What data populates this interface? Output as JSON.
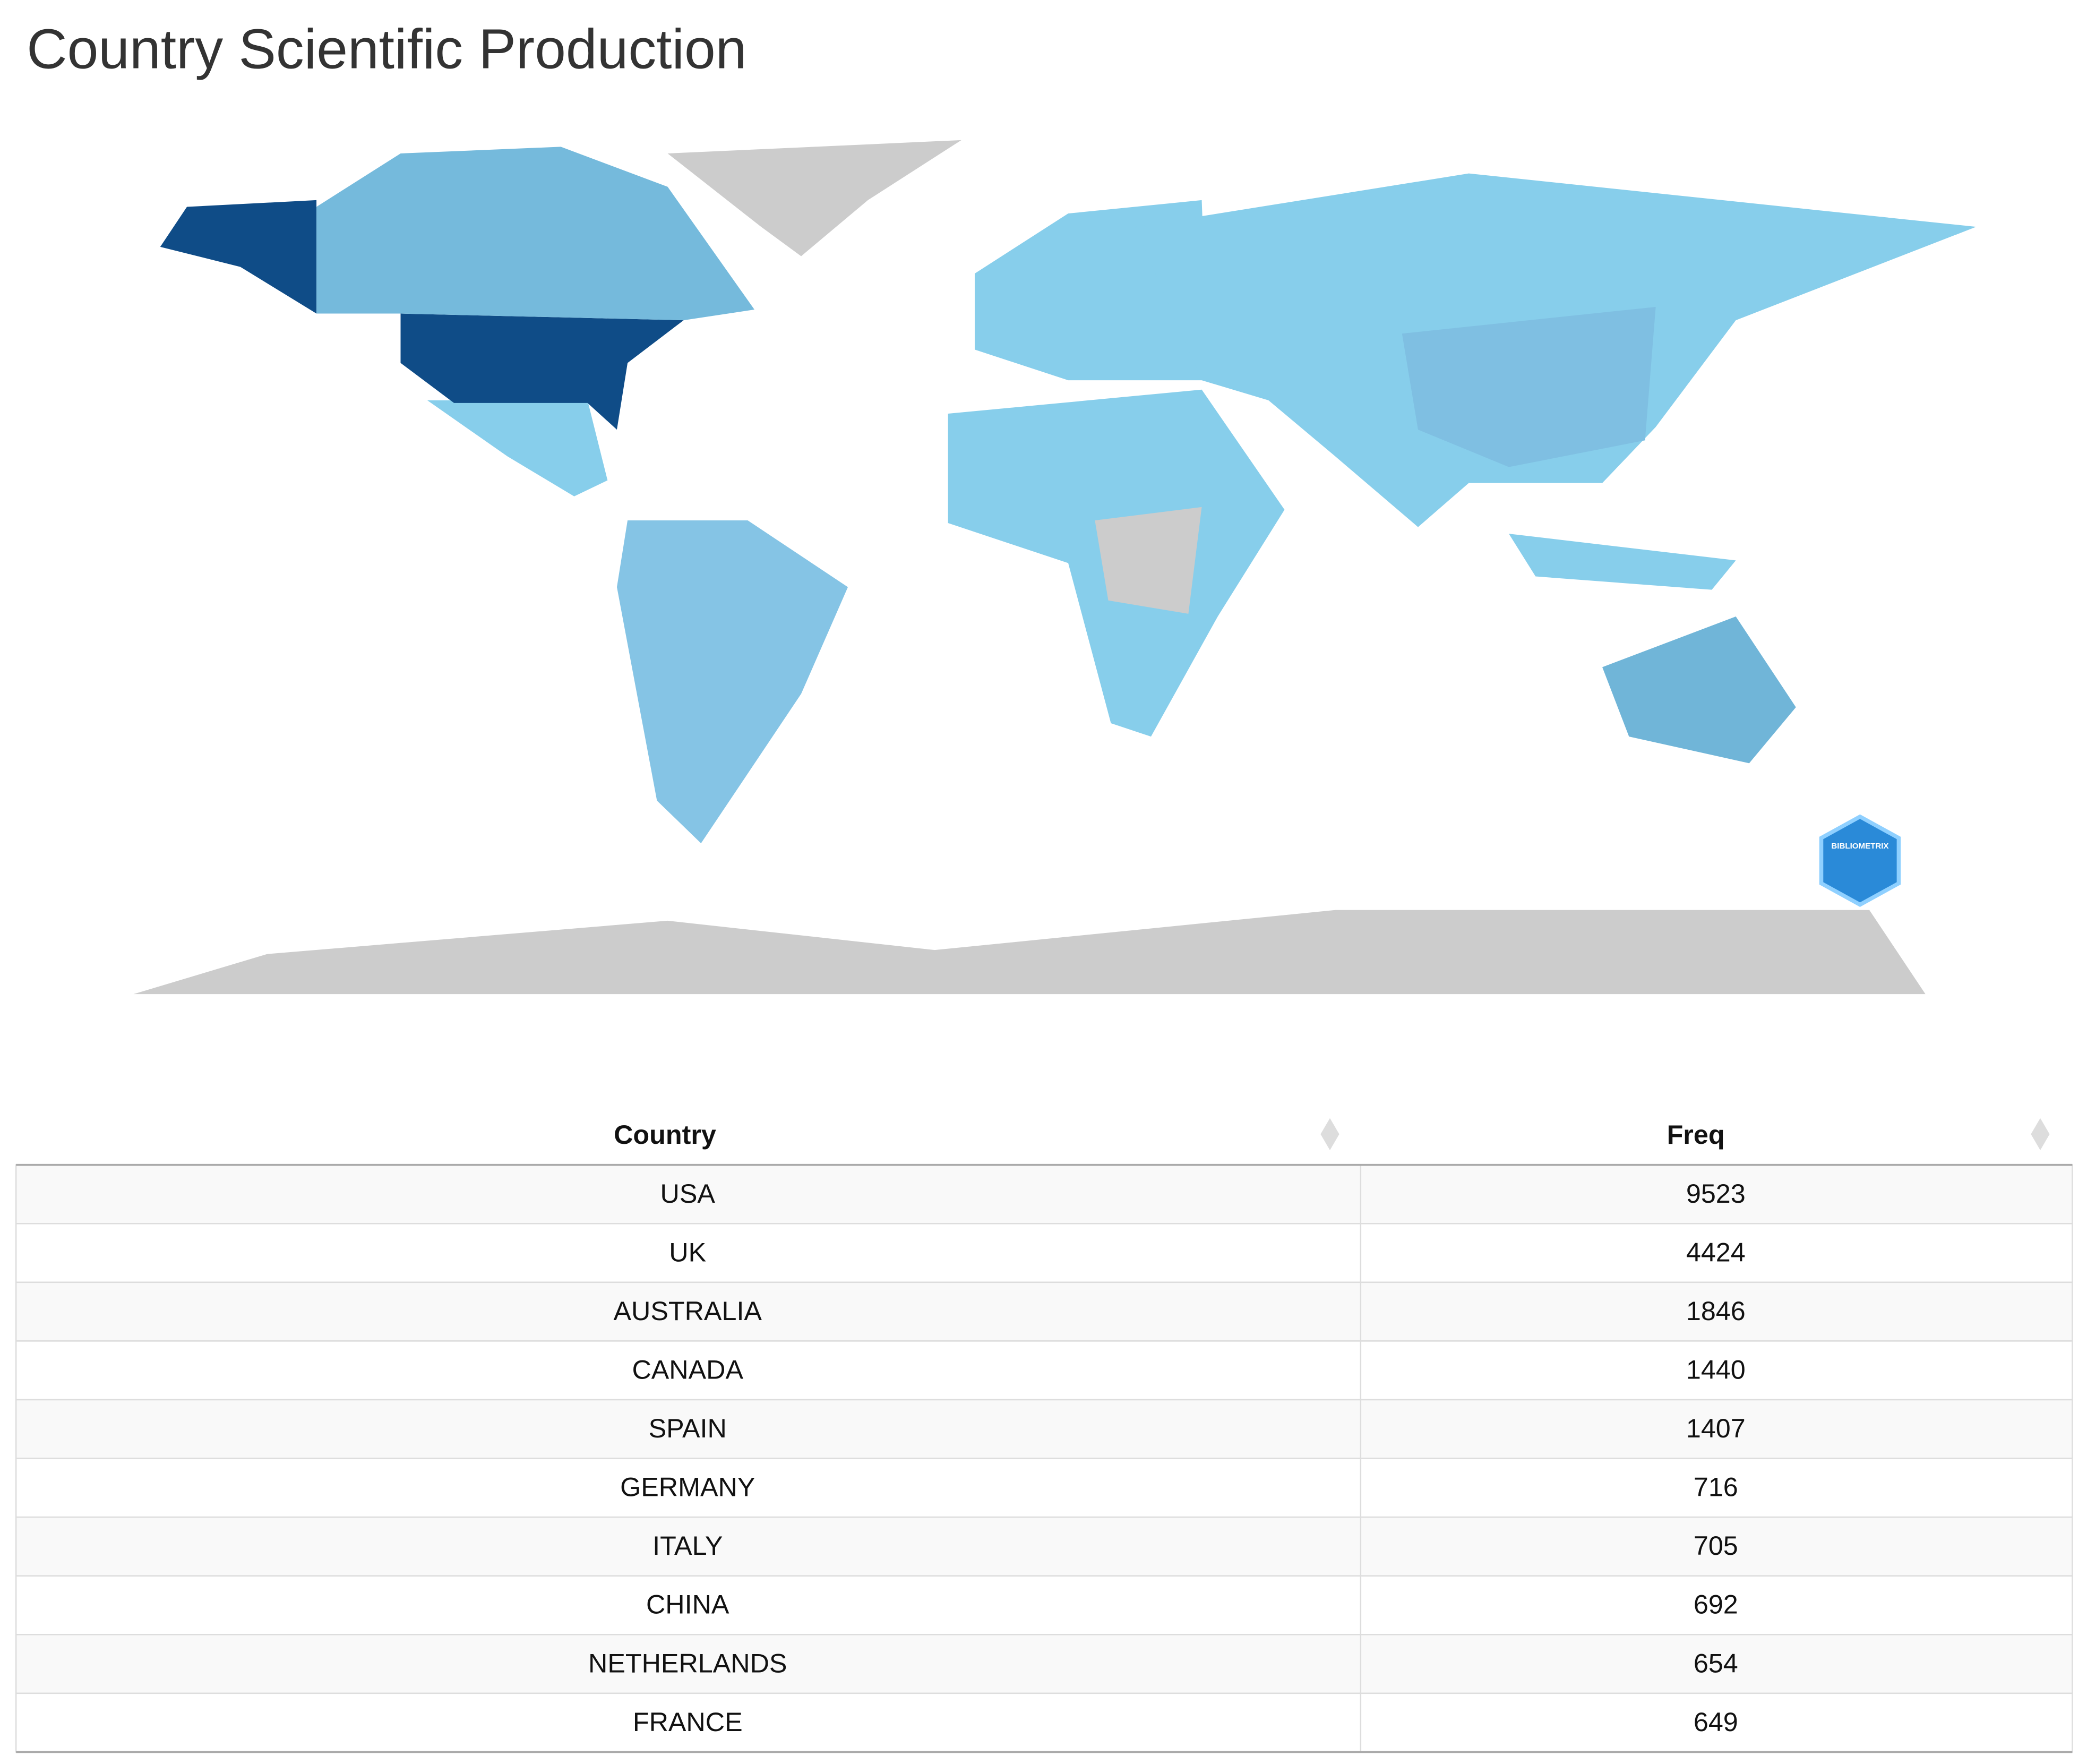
{
  "header": {
    "title": "Country Scientific Production"
  },
  "map": {
    "logo": "BIBLIOMETRIX",
    "low_color": "#87ceeb",
    "high_color": "#0f4c87",
    "empty_color": "#cccccc"
  },
  "table": {
    "columns": [
      "Country",
      "Freq"
    ],
    "rows": [
      [
        "USA",
        9523
      ],
      [
        "UK",
        4424
      ],
      [
        "AUSTRALIA",
        1846
      ],
      [
        "CANADA",
        1440
      ],
      [
        "SPAIN",
        1407
      ],
      [
        "GERMANY",
        716
      ],
      [
        "ITALY",
        705
      ],
      [
        "CHINA",
        692
      ],
      [
        "NETHERLANDS",
        654
      ],
      [
        "FRANCE",
        649
      ]
    ]
  }
}
